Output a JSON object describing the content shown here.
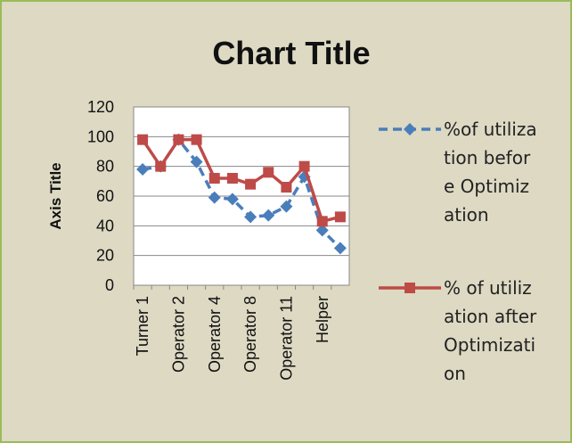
{
  "chart_data": {
    "type": "line",
    "title": "Chart Title",
    "y_axis_label": "Axis Title",
    "categories": [
      "Turner 1",
      null,
      "Operator 2",
      null,
      "Operator 4",
      null,
      "Operator 8",
      null,
      "Operator 11",
      null,
      "Helper",
      null
    ],
    "series": [
      {
        "name": "%of utilization before Optimization",
        "color": "#4a7ebb",
        "marker": "diamond",
        "dashed": true,
        "values": [
          78,
          80,
          98,
          83,
          59,
          58,
          46,
          47,
          53,
          73,
          37,
          25
        ]
      },
      {
        "name": "% of utilization after Optimization",
        "color": "#be4b48",
        "marker": "square",
        "dashed": false,
        "values": [
          98,
          80,
          98,
          98,
          72,
          72,
          68,
          76,
          66,
          80,
          43,
          46
        ]
      }
    ],
    "ylim": [
      0,
      120
    ],
    "yticks": [
      0,
      20,
      40,
      60,
      80,
      100,
      120
    ],
    "grid": true,
    "legend": "right"
  }
}
